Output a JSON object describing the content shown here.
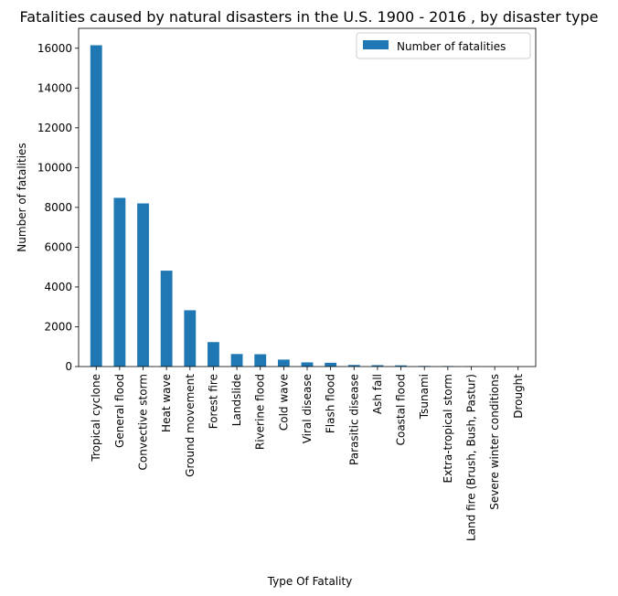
{
  "chart_data": {
    "type": "bar",
    "title": "Fatalities caused by natural disasters in the U.S. 1900 - 2016 , by disaster type",
    "xlabel": "Type Of Fatality",
    "ylabel": "Number of fatalities",
    "ylim": [
      0,
      17000
    ],
    "yticks": [
      0,
      2000,
      4000,
      6000,
      8000,
      10000,
      12000,
      14000,
      16000
    ],
    "grid": false,
    "legend_position": "top-right",
    "bar_color": "#1f77b4",
    "categories": [
      "Tropical cyclone",
      "General flood",
      "Convective storm",
      "Heat wave",
      "Ground movement",
      "Forest fire",
      "Landslide",
      "Riverine flood",
      "Cold wave",
      "Viral disease",
      "Flash flood",
      "Parasitic disease",
      "Ash fall",
      "Coastal flood",
      "Tsunami",
      "Extra-tropical storm",
      "Land fire (Brush, Bush, Pastur)",
      "Severe winter conditions",
      "Drought"
    ],
    "series": [
      {
        "name": "Number of fatalities",
        "values": [
          16150,
          8480,
          8200,
          4820,
          2830,
          1230,
          630,
          620,
          350,
          210,
          190,
          80,
          70,
          60,
          30,
          25,
          15,
          5,
          0
        ]
      }
    ]
  }
}
